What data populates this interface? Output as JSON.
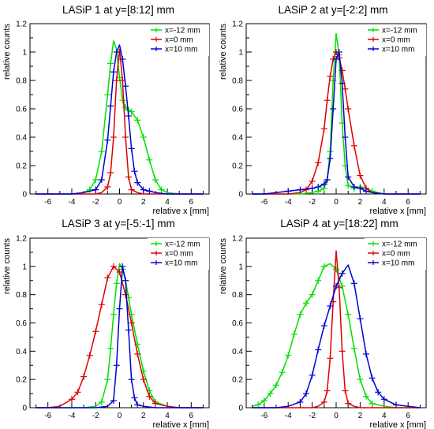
{
  "colors": {
    "x_m12": "#00e000",
    "x_0": "#e00000",
    "x_10": "#0000d0",
    "axis": "#000000",
    "frame": "#000000"
  },
  "chart_data": [
    {
      "type": "line",
      "title": "LASiP 1 at y=[8:12] mm",
      "xlabel": "relative x [mm]",
      "ylabel": "relative counts",
      "xlim": [
        -7.5,
        7.5
      ],
      "ylim": [
        0,
        1.2
      ],
      "xticks": [
        -6,
        -4,
        -2,
        0,
        2,
        4,
        6
      ],
      "yticks": [
        0,
        0.2,
        0.4,
        0.6,
        0.8,
        1,
        1.2
      ],
      "legend_position": "top-right",
      "grid": false,
      "series": [
        {
          "name": "x=-12 mm",
          "color_key": "x_m12",
          "x": [
            -7,
            -6,
            -5,
            -4,
            -3,
            -2.5,
            -2,
            -1.5,
            -1,
            -0.75,
            -0.5,
            -0.25,
            0,
            0.25,
            0.5,
            0.75,
            1,
            1.5,
            2,
            2.5,
            3,
            3.5,
            4,
            5,
            6,
            7
          ],
          "y": [
            0,
            0,
            0,
            0,
            0.01,
            0.03,
            0.1,
            0.3,
            0.7,
            0.92,
            1.08,
            1.02,
            0.82,
            0.66,
            0.61,
            0.59,
            0.58,
            0.52,
            0.4,
            0.24,
            0.1,
            0.03,
            0.01,
            0,
            0,
            0
          ]
        },
        {
          "name": "x=0 mm",
          "color_key": "x_0",
          "x": [
            -7,
            -5,
            -3,
            -2,
            -1.5,
            -1,
            -0.75,
            -0.5,
            -0.25,
            0,
            0.25,
            0.5,
            0.75,
            1,
            1.5,
            2,
            3,
            5,
            7
          ],
          "y": [
            0,
            0,
            0,
            0,
            0.01,
            0.05,
            0.15,
            0.4,
            0.8,
            1.02,
            0.8,
            0.4,
            0.12,
            0.03,
            0.01,
            0,
            0,
            0,
            0
          ]
        },
        {
          "name": "x=10 mm",
          "color_key": "x_10",
          "x": [
            -7,
            -5,
            -4,
            -3,
            -2,
            -1.5,
            -1,
            -0.75,
            -0.5,
            -0.25,
            0,
            0.25,
            0.5,
            0.75,
            1,
            1.25,
            1.5,
            2,
            2.5,
            3,
            4,
            5,
            7
          ],
          "y": [
            0,
            0,
            0,
            0.01,
            0.03,
            0.1,
            0.38,
            0.62,
            0.86,
            1.0,
            1.05,
            0.95,
            0.76,
            0.55,
            0.32,
            0.16,
            0.08,
            0.03,
            0.02,
            0.01,
            0,
            0,
            0
          ]
        }
      ]
    },
    {
      "type": "line",
      "title": "LASiP 2 at y=[-2:2] mm",
      "xlabel": "relative x [mm]",
      "ylabel": "relative counts",
      "xlim": [
        -7.5,
        7.5
      ],
      "ylim": [
        0,
        1.2
      ],
      "xticks": [
        -6,
        -4,
        -2,
        0,
        2,
        4,
        6
      ],
      "yticks": [
        0,
        0.2,
        0.4,
        0.6,
        0.8,
        1,
        1.2
      ],
      "legend_position": "top-right",
      "grid": false,
      "series": [
        {
          "name": "x=-12 mm",
          "color_key": "x_m12",
          "x": [
            -7,
            -5,
            -4,
            -3,
            -2,
            -1.5,
            -1,
            -0.75,
            -0.5,
            -0.25,
            0,
            0.25,
            0.5,
            0.75,
            1,
            1.5,
            2,
            2.5,
            3,
            4,
            5,
            7
          ],
          "y": [
            0,
            0,
            0,
            0,
            0.01,
            0.02,
            0.04,
            0.1,
            0.3,
            0.8,
            1.13,
            0.98,
            0.5,
            0.2,
            0.06,
            0.04,
            0.05,
            0.04,
            0.02,
            0,
            0,
            0
          ]
        },
        {
          "name": "x=0 mm",
          "color_key": "x_0",
          "x": [
            -7,
            -5,
            -4,
            -3,
            -2.5,
            -2,
            -1.5,
            -1,
            -0.75,
            -0.5,
            -0.25,
            0,
            0.25,
            0.5,
            0.75,
            1,
            1.5,
            2,
            2.5,
            3,
            4,
            5,
            7
          ],
          "y": [
            0,
            0,
            0,
            0.01,
            0.03,
            0.09,
            0.22,
            0.46,
            0.66,
            0.83,
            0.95,
            1.0,
            0.96,
            0.87,
            0.74,
            0.6,
            0.34,
            0.13,
            0.04,
            0.01,
            0,
            0,
            0
          ]
        },
        {
          "name": "x=10 mm",
          "color_key": "x_10",
          "x": [
            -7,
            -6,
            -5,
            -4,
            -3,
            -2,
            -1.5,
            -1,
            -0.75,
            -0.5,
            -0.25,
            0,
            0.25,
            0.5,
            0.75,
            1,
            1.5,
            2,
            2.5,
            3,
            4,
            5,
            7
          ],
          "y": [
            0,
            0,
            0.01,
            0.02,
            0.03,
            0.04,
            0.05,
            0.07,
            0.1,
            0.25,
            0.6,
            0.95,
            1.0,
            0.78,
            0.4,
            0.12,
            0.05,
            0.04,
            0.02,
            0.01,
            0,
            0,
            0
          ]
        }
      ]
    },
    {
      "type": "line",
      "title": "LASiP 3 at y=[-5:-1] mm",
      "xlabel": "relative x [mm]",
      "ylabel": "relative counts",
      "xlim": [
        -7.5,
        7.5
      ],
      "ylim": [
        0,
        1.2
      ],
      "xticks": [
        -6,
        -4,
        -2,
        0,
        2,
        4,
        6
      ],
      "yticks": [
        0,
        0.2,
        0.4,
        0.6,
        0.8,
        1,
        1.2
      ],
      "legend_position": "top-right",
      "grid": false,
      "series": [
        {
          "name": "x=-12 mm",
          "color_key": "x_m12",
          "x": [
            -7,
            -5,
            -4,
            -3,
            -2,
            -1.5,
            -1,
            -0.75,
            -0.5,
            -0.25,
            0,
            0.25,
            0.5,
            0.75,
            1,
            1.5,
            2,
            2.5,
            3,
            4,
            5,
            7
          ],
          "y": [
            0,
            0,
            0,
            0,
            0.01,
            0.04,
            0.2,
            0.42,
            0.66,
            0.88,
            1.02,
            0.98,
            0.9,
            0.78,
            0.66,
            0.45,
            0.26,
            0.12,
            0.04,
            0.01,
            0,
            0
          ]
        },
        {
          "name": "x=0 mm",
          "color_key": "x_0",
          "x": [
            -7,
            -6,
            -5,
            -4,
            -3.5,
            -3,
            -2.5,
            -2,
            -1.5,
            -1,
            -0.5,
            0,
            0.5,
            1,
            1.5,
            2,
            2.5,
            3,
            4,
            5,
            7
          ],
          "y": [
            0,
            0,
            0.01,
            0.06,
            0.11,
            0.22,
            0.37,
            0.54,
            0.73,
            0.92,
            1.0,
            0.96,
            0.8,
            0.6,
            0.38,
            0.2,
            0.08,
            0.03,
            0.01,
            0,
            0
          ]
        },
        {
          "name": "x=10 mm",
          "color_key": "x_10",
          "x": [
            -7,
            -5,
            -3,
            -2,
            -1,
            -0.5,
            -0.25,
            0,
            0.25,
            0.5,
            0.75,
            1,
            1.25,
            1.5,
            2,
            3,
            5,
            7
          ],
          "y": [
            0,
            0,
            0,
            0,
            0.01,
            0.05,
            0.3,
            0.7,
            1.0,
            0.9,
            0.55,
            0.2,
            0.07,
            0.02,
            0.01,
            0,
            0,
            0
          ]
        }
      ]
    },
    {
      "type": "line",
      "title": "LASiP 4 at y=[18:22] mm",
      "xlabel": "relative x [mm]",
      "ylabel": "relative counts",
      "xlim": [
        -7.5,
        7.5
      ],
      "ylim": [
        0,
        1.2
      ],
      "xticks": [
        -6,
        -4,
        -2,
        0,
        2,
        4,
        6
      ],
      "yticks": [
        0,
        0.2,
        0.4,
        0.6,
        0.8,
        1,
        1.2
      ],
      "legend_position": "top-right",
      "grid": false,
      "series": [
        {
          "name": "x=-12 mm",
          "color_key": "x_m12",
          "x": [
            -7,
            -6.5,
            -6,
            -5.5,
            -5,
            -4.5,
            -4,
            -3.5,
            -3,
            -2.5,
            -2,
            -1.5,
            -1,
            -0.5,
            0,
            0.5,
            1,
            1.5,
            2,
            2.5,
            3,
            4,
            5,
            7
          ],
          "y": [
            0.01,
            0.02,
            0.05,
            0.1,
            0.16,
            0.25,
            0.37,
            0.52,
            0.66,
            0.74,
            0.8,
            0.9,
            1.0,
            1.02,
            0.98,
            0.86,
            0.66,
            0.42,
            0.2,
            0.08,
            0.03,
            0.01,
            0,
            0
          ]
        },
        {
          "name": "x=0 mm",
          "color_key": "x_0",
          "x": [
            -7,
            -5,
            -3,
            -2,
            -1.5,
            -1,
            -0.75,
            -0.5,
            -0.25,
            0,
            0.25,
            0.5,
            0.75,
            1,
            1.5,
            2,
            3,
            5,
            7
          ],
          "y": [
            0,
            0,
            0,
            0,
            0.01,
            0.04,
            0.12,
            0.35,
            0.75,
            1.11,
            0.85,
            0.4,
            0.12,
            0.03,
            0.01,
            0,
            0,
            0,
            0
          ]
        },
        {
          "name": "x=10 mm",
          "color_key": "x_10",
          "x": [
            -7,
            -6,
            -5,
            -4,
            -3,
            -2.5,
            -2,
            -1.5,
            -1,
            -0.5,
            0,
            0.5,
            1,
            1.5,
            2,
            2.5,
            3,
            3.5,
            4,
            5,
            6,
            7
          ],
          "y": [
            0,
            0,
            0,
            0.01,
            0.04,
            0.1,
            0.23,
            0.41,
            0.58,
            0.72,
            0.86,
            0.95,
            1.01,
            0.88,
            0.63,
            0.38,
            0.21,
            0.11,
            0.06,
            0.02,
            0.01,
            0
          ]
        }
      ]
    }
  ]
}
